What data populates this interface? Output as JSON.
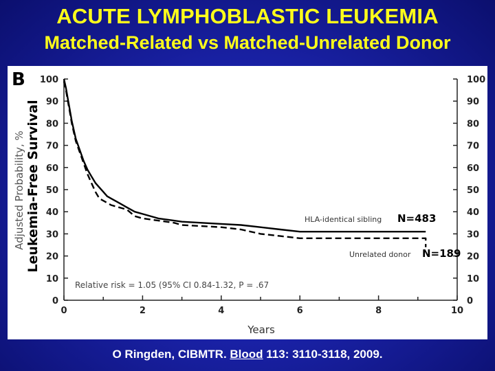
{
  "header": {
    "title": "ACUTE LYMPHOBLASTIC LEUKEMIA",
    "subtitle": "Matched-Related vs Matched-Unrelated Donor"
  },
  "citation": {
    "pre": "O Ringden, CIBMTR. ",
    "journal": "Blood",
    "post": " 113: 3110-3118, 2009."
  },
  "colors": {
    "title": "#ffff1a",
    "background": "#1a22a8",
    "panel": "#ffffff",
    "series": "#000000"
  },
  "chart_data": {
    "type": "line",
    "panel_label": "B",
    "xlabel": "Years",
    "ylabel": "Adjusted Probability, %",
    "ylabel_overlay": "Leukemia-Free Survival",
    "xlim": [
      0,
      10
    ],
    "ylim": [
      0,
      100
    ],
    "x_ticks": [
      0,
      2,
      4,
      6,
      8,
      10
    ],
    "y_ticks": [
      0,
      10,
      20,
      30,
      40,
      50,
      60,
      70,
      80,
      90,
      100
    ],
    "grid": false,
    "annotation": "Relative risk = 1.05 (95% CI 0.84-1.32, P = .67",
    "series": [
      {
        "name": "HLA-identical sibling",
        "n_label": "N=483",
        "style": "solid",
        "x": [
          0,
          0.05,
          0.1,
          0.15,
          0.2,
          0.3,
          0.4,
          0.5,
          0.6,
          0.7,
          0.8,
          0.9,
          1.0,
          1.1,
          1.2,
          1.4,
          1.6,
          1.8,
          2.0,
          2.4,
          2.8,
          3.0,
          3.5,
          4.0,
          4.5,
          5.0,
          5.5,
          6.0,
          7.0,
          8.0,
          9.0,
          9.2
        ],
        "y": [
          100,
          96,
          91,
          86,
          81,
          73,
          68,
          63,
          59,
          56,
          53,
          51,
          49,
          47,
          46,
          44,
          42,
          40,
          39,
          37,
          36,
          35.5,
          35,
          34.5,
          34,
          33,
          32,
          31,
          31,
          31,
          31,
          31
        ]
      },
      {
        "name": "Unrelated donor",
        "n_label": "N=189",
        "style": "dashed",
        "x": [
          0,
          0.05,
          0.1,
          0.15,
          0.2,
          0.3,
          0.4,
          0.5,
          0.6,
          0.7,
          0.8,
          0.9,
          1.0,
          1.1,
          1.2,
          1.4,
          1.6,
          1.8,
          2.0,
          2.4,
          2.8,
          3.0,
          3.5,
          4.0,
          4.5,
          5.0,
          5.5,
          6.0,
          7.0,
          8.0,
          9.0,
          9.2,
          9.2
        ],
        "y": [
          99,
          95,
          90,
          85,
          80,
          72,
          67,
          62,
          57,
          53,
          49,
          46,
          45,
          44,
          43,
          42,
          41,
          38,
          37,
          36,
          35,
          34,
          33.5,
          33,
          32,
          30,
          29,
          28,
          28,
          28,
          28,
          28,
          24
        ]
      }
    ]
  }
}
